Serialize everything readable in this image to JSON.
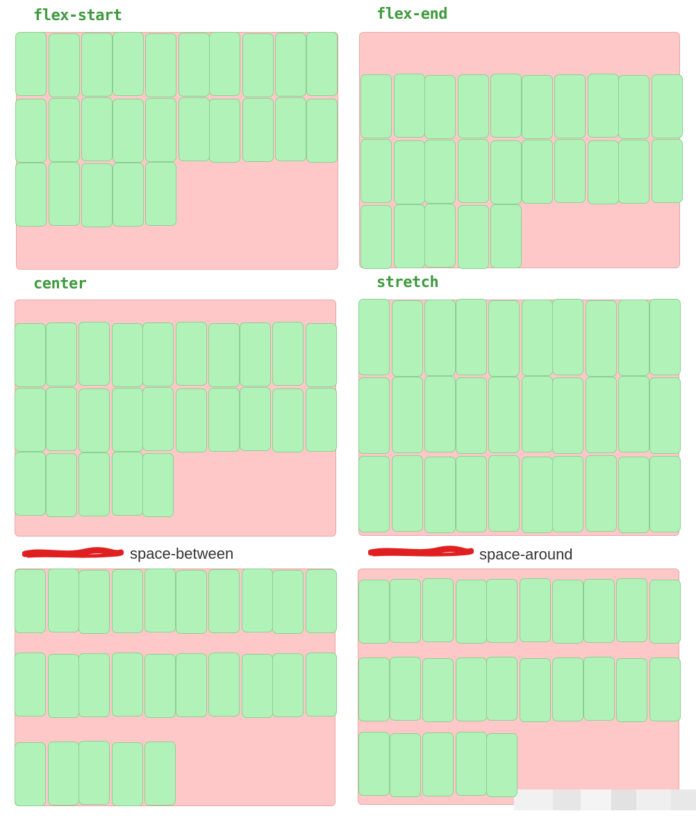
{
  "colors": {
    "container": "#ffc8c8",
    "container_border": "#e8a6a6",
    "item": "#b1f2b8",
    "item_border": "#8ecf95",
    "label_handwritten": "#3e9a3e",
    "scribble": "#e02020"
  },
  "panels": [
    {
      "key": "flex-start",
      "label": "flex-start",
      "rows": [
        10,
        10,
        5
      ]
    },
    {
      "key": "flex-end",
      "label": "flex-end",
      "rows": [
        10,
        10,
        5
      ]
    },
    {
      "key": "center",
      "label": "center",
      "rows": [
        10,
        10,
        5
      ]
    },
    {
      "key": "stretch",
      "label": "stretch",
      "rows": [
        10,
        10,
        10
      ]
    },
    {
      "key": "space-between",
      "label": "space-between",
      "rows": [
        10,
        10,
        5
      ],
      "struck_text_icon": "red-scribble"
    },
    {
      "key": "space-around",
      "label": "space-around",
      "rows": [
        10,
        10,
        5
      ],
      "struck_text_icon": "red-scribble"
    }
  ]
}
